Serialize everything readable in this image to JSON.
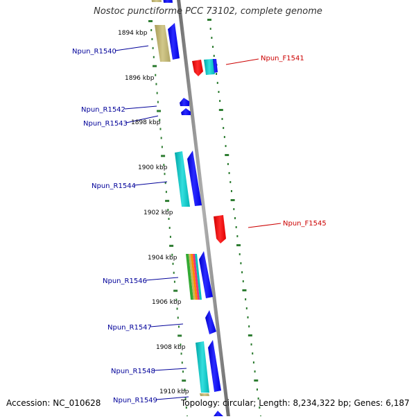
{
  "title": "Nostoc punctiforme PCC 73102, complete genome",
  "footer": {
    "accession": "Accession: NC_010628",
    "summary": "Topology: circular; Length: 8,234,322 bp; Genes: 6,187"
  },
  "colors": {
    "reverse_label": "#000099",
    "forward_label": "#cc0000",
    "backbone": "#8c8c8c",
    "ticks": "#2e7d32",
    "gene_blue": "#0000ff",
    "gene_cyan": "#00b8b8",
    "gene_red": "#ff0000",
    "gene_khaki": "#b8ad6a"
  },
  "ticks": [
    "1894 kbp",
    "1896 kbp",
    "1898 kbp",
    "1900 kbp",
    "1902 kbp",
    "1904 kbp",
    "1906 kbp",
    "1908 kbp",
    "1910 kbp"
  ],
  "gene_labels": [
    {
      "label": "Npun_R1540",
      "strand": "reverse"
    },
    {
      "label": "Npun_F1541",
      "strand": "forward"
    },
    {
      "label": "Npun_R1542",
      "strand": "reverse"
    },
    {
      "label": "Npun_R1543",
      "strand": "reverse"
    },
    {
      "label": "Npun_R1544",
      "strand": "reverse"
    },
    {
      "label": "Npun_F1545",
      "strand": "forward"
    },
    {
      "label": "Npun_R1546",
      "strand": "reverse"
    },
    {
      "label": "Npun_R1547",
      "strand": "reverse"
    },
    {
      "label": "Npun_R1548",
      "strand": "reverse"
    },
    {
      "label": "Npun_R1549",
      "strand": "reverse"
    }
  ]
}
